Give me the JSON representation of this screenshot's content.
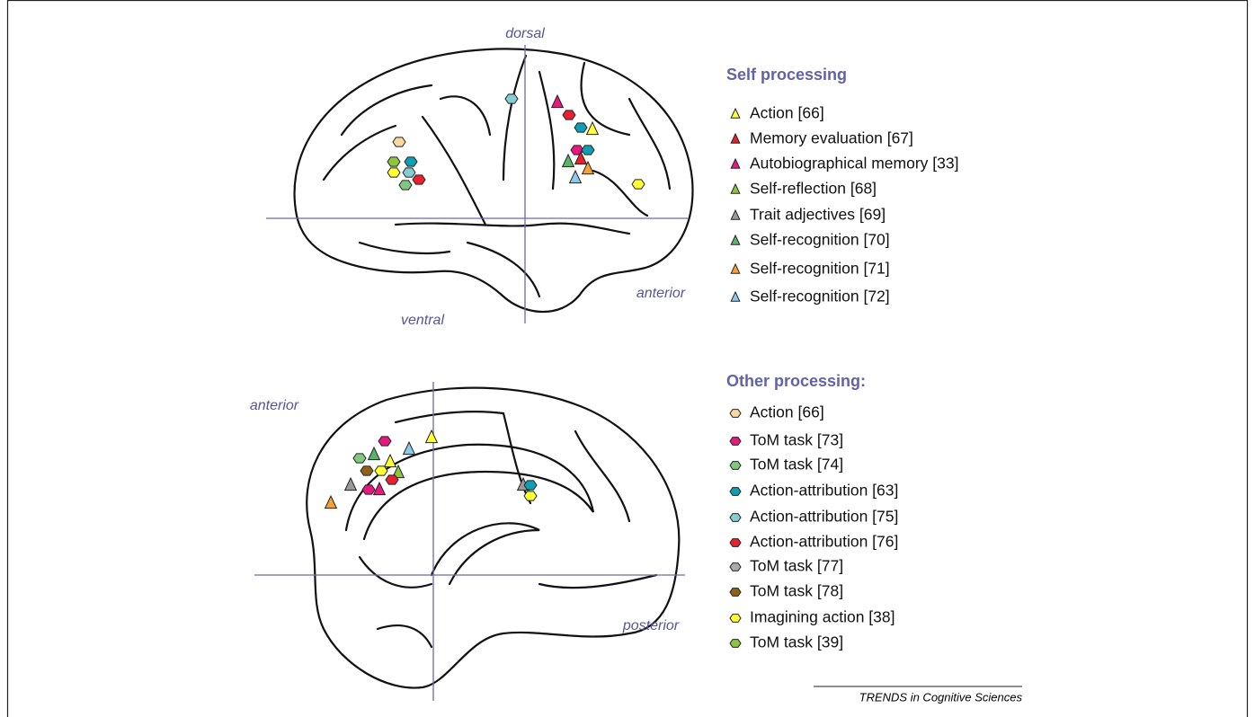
{
  "top_view": {
    "dorsal": "dorsal",
    "ventral": "ventral",
    "anterior": "anterior"
  },
  "bottom_view": {
    "anterior": "anterior",
    "posterior": "posterior"
  },
  "self_legend": {
    "title": "Self processing",
    "items": [
      {
        "label": "Action [66]",
        "color": "#ffff33"
      },
      {
        "label": "Memory evaluation [67]",
        "color": "#e8202a"
      },
      {
        "label": "Autobiographical memory [33]",
        "color": "#e6197f"
      },
      {
        "label": "Self-reflection [68]",
        "color": "#8cc63f"
      },
      {
        "label": "Trait adjectives [69]",
        "color": "#9a9a9a"
      },
      {
        "label": "Self-recognition [70]",
        "color": "#5bb36a"
      },
      {
        "label": "Self-recognition [71]",
        "color": "#f7a134"
      },
      {
        "label": "Self-recognition [72]",
        "color": "#8ccbe8"
      }
    ]
  },
  "other_legend": {
    "title": "Other processing:",
    "items": [
      {
        "label": "Action [66]",
        "color": "#fbd7a0"
      },
      {
        "label": "ToM task [73]",
        "color": "#e6197f"
      },
      {
        "label": "ToM task [74]",
        "color": "#80c87f"
      },
      {
        "label": "Action-attribution [63]",
        "color": "#0f9fb5"
      },
      {
        "label": "Action-attribution [75]",
        "color": "#86cdd3"
      },
      {
        "label": "Action-attribution [76]",
        "color": "#e82030"
      },
      {
        "label": "ToM task [77]",
        "color": "#aaaaaa"
      },
      {
        "label": "ToM task [78]",
        "color": "#8f6217"
      },
      {
        "label": "Imagining action [38]",
        "color": "#ffff33"
      },
      {
        "label": "ToM task [39]",
        "color": "#8cc63f"
      }
    ]
  },
  "footer": "TRENDS in Cognitive Sciences"
}
